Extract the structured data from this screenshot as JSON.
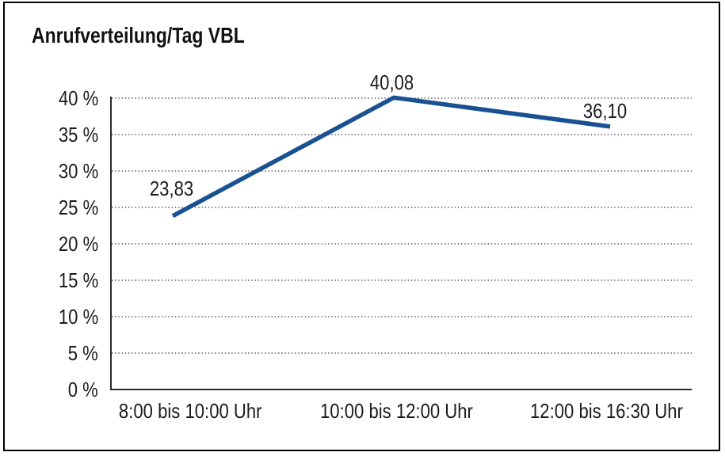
{
  "figure": {
    "title": "Anrufverteilung/Tag VBL"
  },
  "chart_data": {
    "type": "line",
    "title": "Anrufverteilung/Tag VBL",
    "categories": [
      "8:00 bis 10:00 Uhr",
      "10:00 bis 12:00 Uhr",
      "12:00 bis 16:30 Uhr"
    ],
    "values": [
      23.83,
      40.08,
      36.1
    ],
    "data_labels": [
      "23,83",
      "40,08",
      "36,10"
    ],
    "y_ticks": [
      {
        "value": 0,
        "label": "0 %"
      },
      {
        "value": 5,
        "label": "5 %"
      },
      {
        "value": 10,
        "label": "10 %"
      },
      {
        "value": 15,
        "label": "15 %"
      },
      {
        "value": 20,
        "label": "20 %"
      },
      {
        "value": 25,
        "label": "25 %"
      },
      {
        "value": 30,
        "label": "30 %"
      },
      {
        "value": 35,
        "label": "35 %"
      },
      {
        "value": 40,
        "label": "40 %"
      }
    ],
    "ylim": [
      0,
      40
    ],
    "xlabel": "",
    "ylabel": "",
    "grid": "horizontal dotted",
    "legend": "none",
    "colors": {
      "line": "#1a5192",
      "axis": "#2b2b2b",
      "grid": "#555555",
      "text": "#1c1c1c",
      "background": "#ffffff",
      "frame_border": "#000000"
    }
  }
}
